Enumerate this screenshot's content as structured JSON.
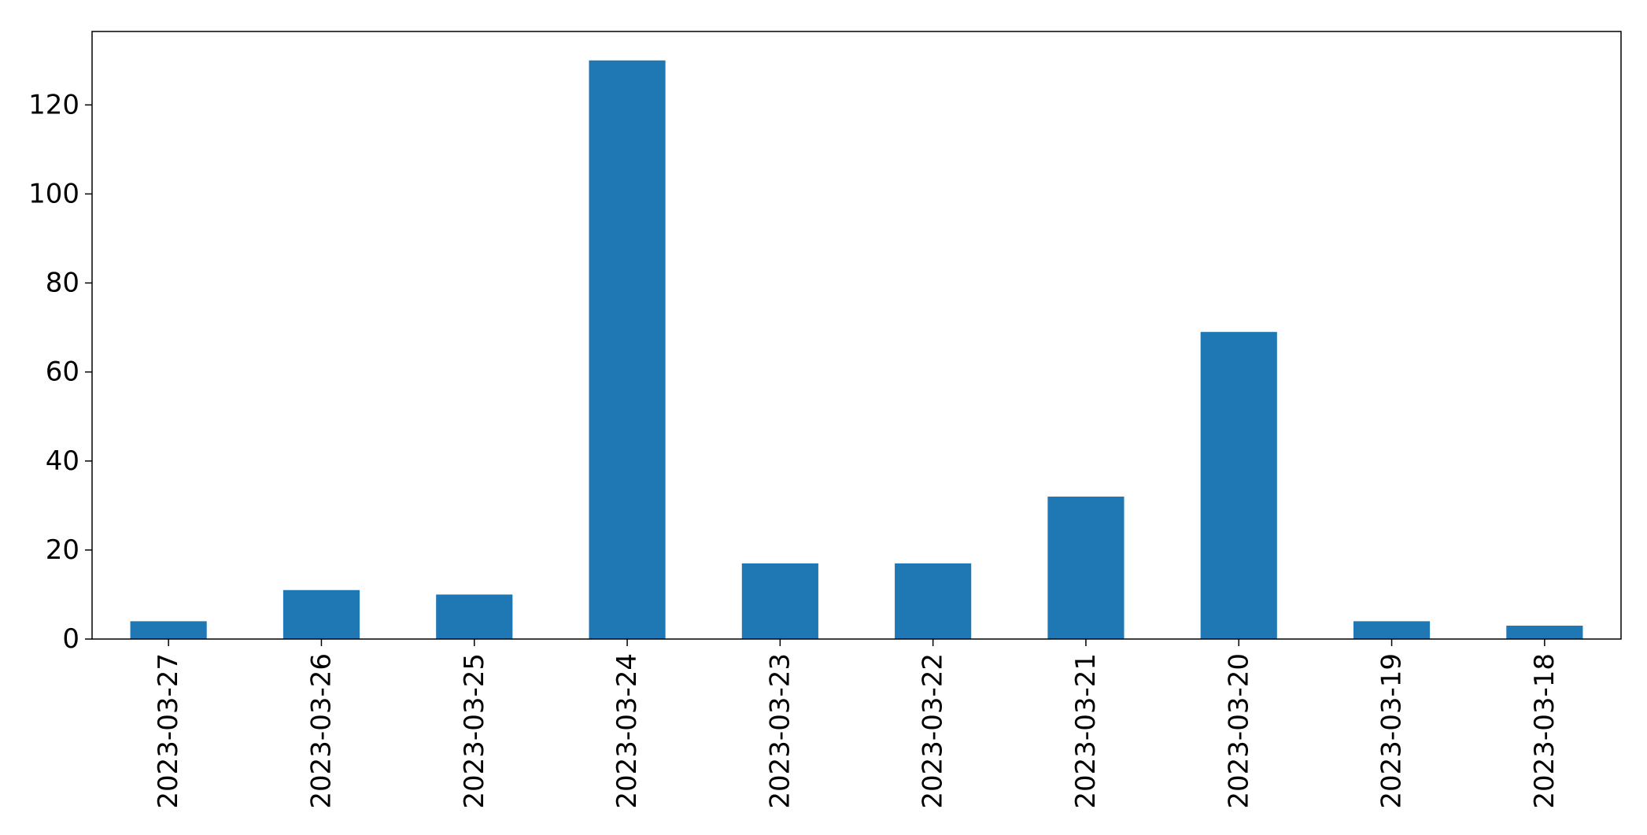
{
  "chart_data": {
    "type": "bar",
    "title": "",
    "xlabel": "",
    "ylabel": "",
    "categories": [
      "2023-03-27",
      "2023-03-26",
      "2023-03-25",
      "2023-03-24",
      "2023-03-23",
      "2023-03-22",
      "2023-03-21",
      "2023-03-20",
      "2023-03-19",
      "2023-03-18"
    ],
    "values": [
      4,
      11,
      10,
      130,
      17,
      17,
      32,
      69,
      4,
      3
    ],
    "ylim": [
      0,
      136.5
    ],
    "yticks": [
      0,
      20,
      40,
      60,
      80,
      100,
      120
    ],
    "ytick_labels": [
      "0",
      "20",
      "40",
      "60",
      "80",
      "100",
      "120"
    ],
    "grid": false,
    "legend": "none",
    "bar_color": "#1f77b4",
    "x_tick_rotation": "vertical"
  }
}
